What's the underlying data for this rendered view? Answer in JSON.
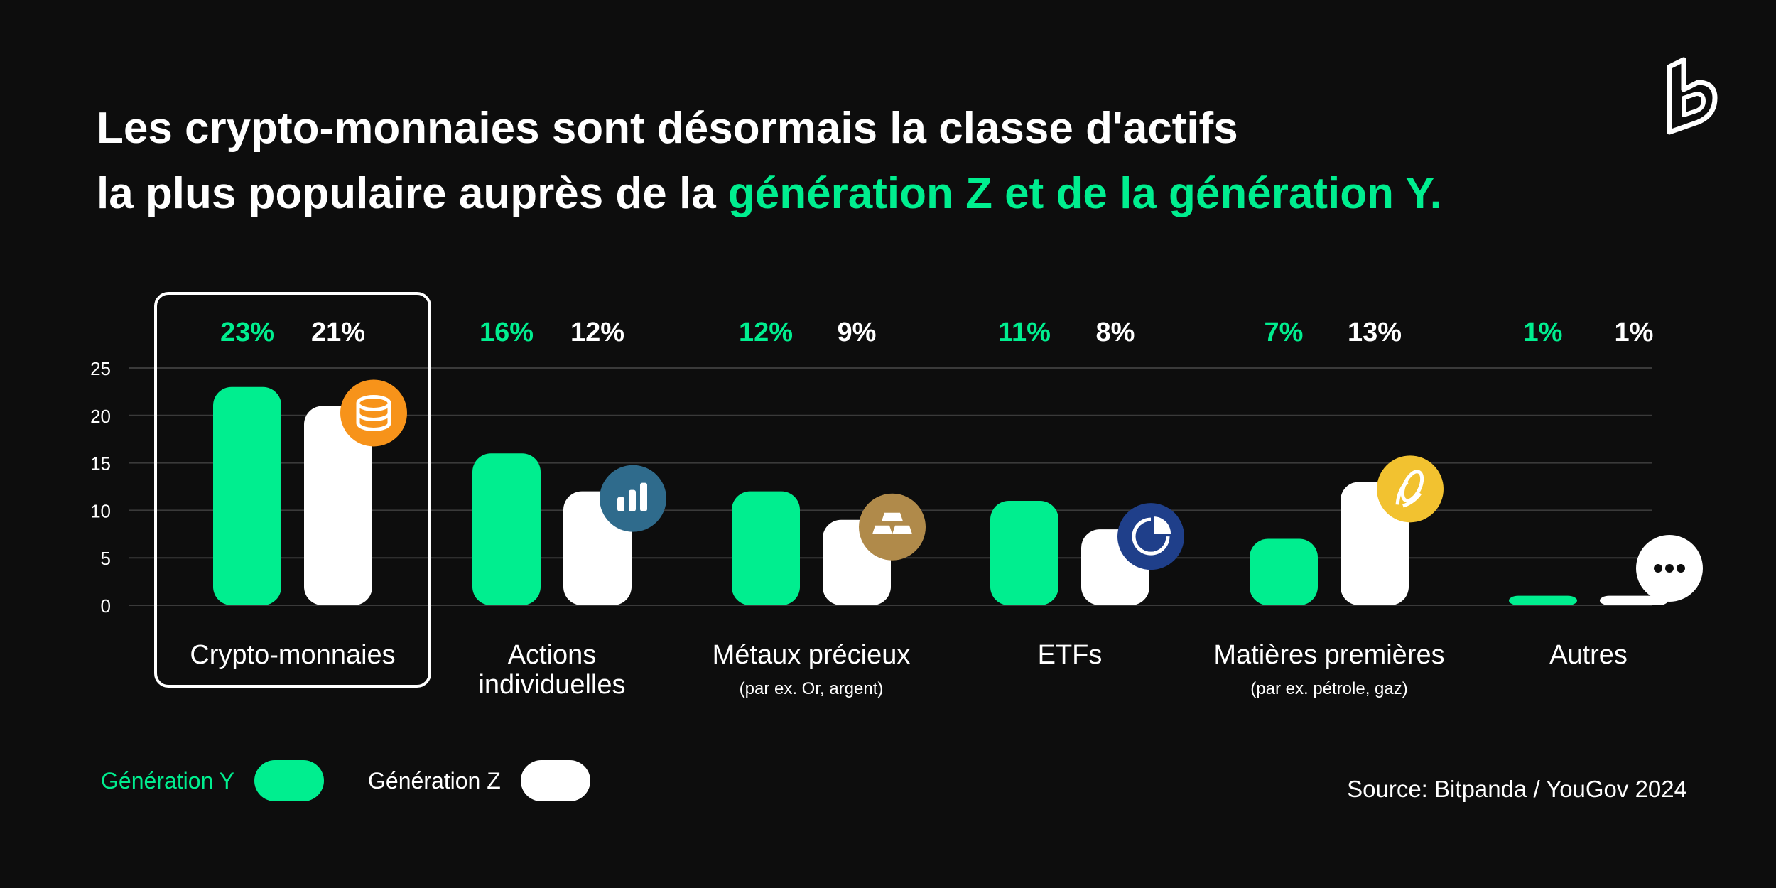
{
  "title": {
    "line1": "Les crypto-monnaies sont désormais la classe d'actifs",
    "line2_prefix": "la plus populaire auprès de la ",
    "line2_accent": "génération Z et de la génération Y."
  },
  "colors": {
    "background": "#0d0d0d",
    "generation_y": "#00ee8f",
    "generation_z": "#ffffff",
    "grid": "#3a3a3a"
  },
  "legend": {
    "generation_y": "Génération Y",
    "generation_z": "Génération Z"
  },
  "source": "Source: Bitpanda / YouGov 2024",
  "chart_data": {
    "type": "bar",
    "categories": [
      "Crypto-monnaies",
      "Actions individuelles",
      "Métaux précieux",
      "ETFs",
      "Matières premières",
      "Autres"
    ],
    "category_labels": [
      [
        "Crypto-monnaies"
      ],
      [
        "Actions",
        "individuelles"
      ],
      [
        "Métaux précieux"
      ],
      [
        "ETFs"
      ],
      [
        "Matières premières"
      ],
      [
        "Autres"
      ]
    ],
    "category_sublabels": [
      "",
      "",
      "(par ex. Or, argent)",
      "",
      "(par ex. pétrole, gaz)",
      ""
    ],
    "category_icons": [
      "coins-icon",
      "bar-chart-icon",
      "gold-bars-icon",
      "pie-chart-icon",
      "corn-icon",
      "ellipsis-icon"
    ],
    "icon_colors": [
      "#f7931a",
      "#2f6b8c",
      "#b08a4a",
      "#1f3f8a",
      "#f2c230",
      "#ffffff"
    ],
    "highlighted_category": "Crypto-monnaies",
    "series": [
      {
        "name": "Génération Y",
        "values": [
          23,
          16,
          12,
          11,
          7,
          1
        ],
        "labels": [
          "23%",
          "16%",
          "12%",
          "11%",
          "7%",
          "1%"
        ],
        "color": "#00ee8f"
      },
      {
        "name": "Génération Z",
        "values": [
          21,
          12,
          9,
          8,
          13,
          1
        ],
        "labels": [
          "21%",
          "12%",
          "9%",
          "8%",
          "13%",
          "1%"
        ],
        "color": "#ffffff"
      }
    ],
    "yticks": [
      0,
      5,
      10,
      15,
      20,
      25
    ],
    "ylim": [
      0,
      25
    ],
    "grid": true,
    "legend_position": "bottom-left"
  }
}
